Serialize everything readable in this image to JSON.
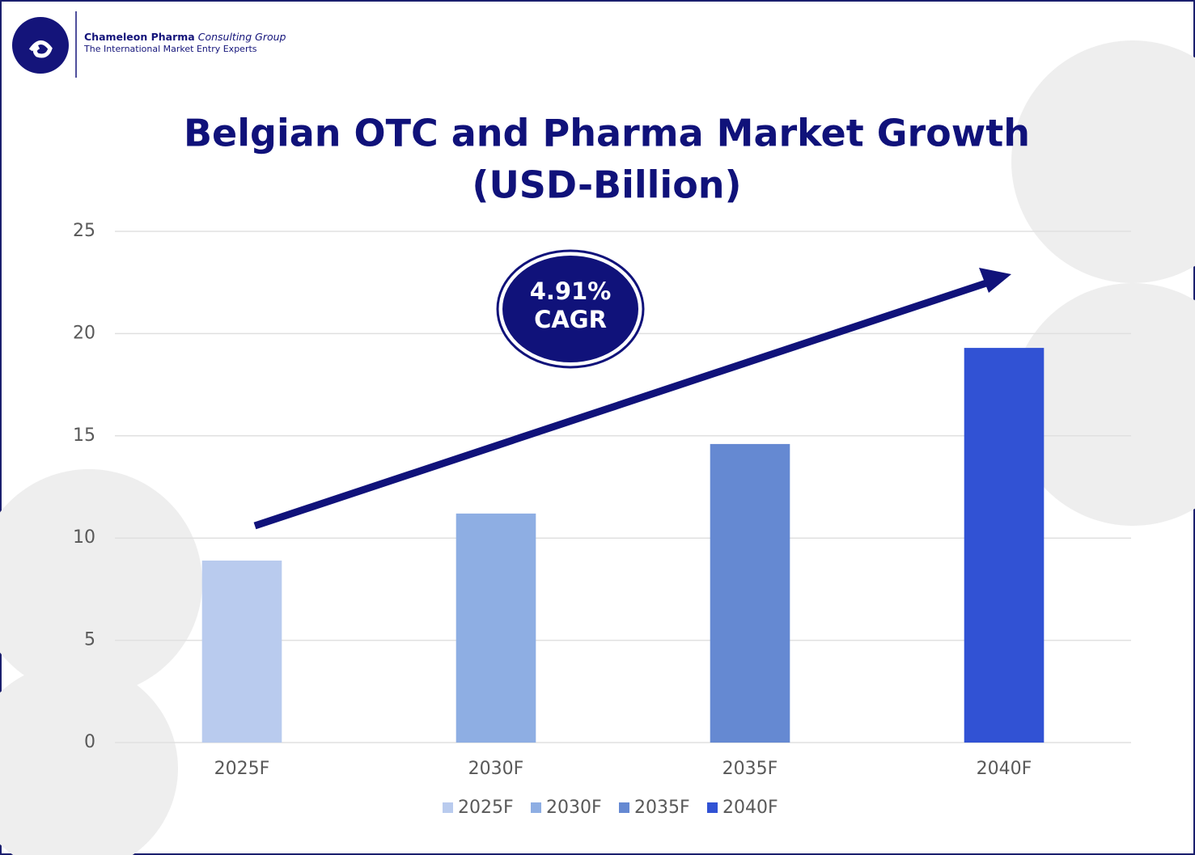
{
  "header": {
    "brand": "Chameleon Pharma",
    "brand_suffix": "Consulting Group",
    "tagline": "The International Market Entry Experts"
  },
  "chart_data": {
    "type": "bar",
    "title": [
      "Belgian OTC and Pharma Market Growth",
      "(USD-Billion)"
    ],
    "annotation": [
      "4.91%",
      "CAGR"
    ],
    "categories": [
      "2025F",
      "2030F",
      "2035F",
      "2040F"
    ],
    "values": [
      8.9,
      11.2,
      14.6,
      19.3
    ],
    "colors": [
      "#b9cbee",
      "#8eaee3",
      "#6589d2",
      "#3152d4"
    ],
    "ylim": [
      0,
      25
    ],
    "yticks": [
      0,
      5,
      10,
      15,
      20,
      25
    ],
    "grid": true,
    "legend": "bottom"
  }
}
